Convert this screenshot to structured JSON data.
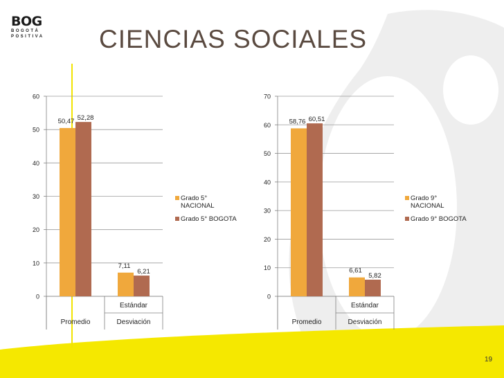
{
  "header": {
    "title": "CIENCIAS SOCIALES"
  },
  "logo": {
    "word": "BOG",
    "line1": "BOGOTÁ",
    "line2": "POSITIVA"
  },
  "footer": {
    "page_number": "19"
  },
  "colors": {
    "orange": "#f0a83c",
    "brown": "#b06a50",
    "yellow": "#f5e800",
    "watermark": "#eeeeee"
  },
  "chart_data": [
    {
      "type": "bar",
      "title": "",
      "categories": [
        "Promedio",
        "Estándar"
      ],
      "category_group_labels": [
        "Promedio",
        "Desviación"
      ],
      "series": [
        {
          "name": "Grado 5° NACIONAL",
          "values": [
            50.47,
            7.11
          ],
          "labels": [
            "50,47",
            "7,11"
          ],
          "color": "#f0a83c"
        },
        {
          "name": "Grado 5°  BOGOTA",
          "values": [
            52.28,
            6.21
          ],
          "labels": [
            "52,28",
            "6,21"
          ],
          "color": "#b06a50"
        }
      ],
      "ylim": [
        0,
        60
      ],
      "yticks": [
        0,
        10,
        20,
        30,
        40,
        50,
        60
      ],
      "grid": true,
      "legend_position": "right"
    },
    {
      "type": "bar",
      "title": "",
      "categories": [
        "Promedio",
        "Estándar"
      ],
      "category_group_labels": [
        "Promedio",
        "Desviación"
      ],
      "series": [
        {
          "name": "Grado 9° NACIONAL",
          "values": [
            58.76,
            6.61
          ],
          "labels": [
            "58,76",
            "6,61"
          ],
          "color": "#f0a83c"
        },
        {
          "name": "Grado 9°  BOGOTA",
          "values": [
            60.51,
            5.82
          ],
          "labels": [
            "60,51",
            "5,82"
          ],
          "color": "#b06a50"
        }
      ],
      "ylim": [
        0,
        70
      ],
      "yticks": [
        0,
        10,
        20,
        30,
        40,
        50,
        60,
        70
      ],
      "grid": true,
      "legend_position": "right"
    }
  ]
}
